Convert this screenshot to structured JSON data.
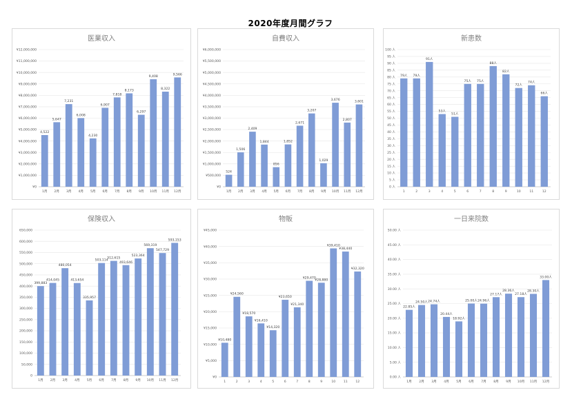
{
  "page": {
    "title": "2020年度月間グラフ"
  },
  "colors": {
    "bar": "#7f9cd6"
  },
  "chart_data": [
    {
      "type": "bar",
      "title": "医業収入",
      "categories": [
        "1月",
        "2月",
        "3月",
        "4月",
        "5月",
        "6月",
        "7月",
        "8月",
        "9月",
        "10月",
        "11月",
        "12月"
      ],
      "values": [
        4522000,
        5647000,
        7231000,
        6008000,
        4230000,
        6907000,
        7818000,
        8173000,
        6297000,
        9408000,
        8322000,
        9566000
      ],
      "data_labels": [
        "4,522",
        "5,647",
        "7,231",
        "6,008",
        "4,230",
        "6,907",
        "7,818",
        "8,173",
        "6,297",
        "9,408",
        "8,322",
        "9,566"
      ],
      "ylim": [
        0,
        12000000
      ],
      "yticks": [
        0,
        1000000,
        2000000,
        3000000,
        4000000,
        5000000,
        6000000,
        7000000,
        8000000,
        9000000,
        10000000,
        11000000,
        12000000
      ],
      "ytick_labels": [
        "¥0",
        "¥1,000,000",
        "¥2,000,000",
        "¥3,000,000",
        "¥4,000,000",
        "¥5,000,000",
        "¥6,000,000",
        "¥7,000,000",
        "¥8,000,000",
        "¥9,000,000",
        "¥10,000,000",
        "¥11,000,000",
        "¥12,000,000"
      ],
      "grid": true
    },
    {
      "type": "bar",
      "title": "自費収入",
      "categories": [
        "1月",
        "2月",
        "3月",
        "4月",
        "5月",
        "6月",
        "7月",
        "8月",
        "9月",
        "10月",
        "11月",
        "12月"
      ],
      "values": [
        524000,
        1506000,
        2409000,
        1844000,
        856000,
        1852000,
        2671000,
        3207000,
        1029000,
        3676000,
        2807000,
        3601000
      ],
      "data_labels": [
        "524",
        "1,506",
        "2,409",
        "1,844",
        "856",
        "1,852",
        "2,671",
        "3,207",
        "1,029",
        "3,676",
        "2,807",
        "3,601"
      ],
      "ylim": [
        0,
        6000000
      ],
      "yticks": [
        0,
        500000,
        1000000,
        1500000,
        2000000,
        2500000,
        3000000,
        3500000,
        4000000,
        4500000,
        5000000,
        5500000,
        6000000
      ],
      "ytick_labels": [
        "¥0",
        "¥500,000",
        "¥1,000,000",
        "¥1,500,000",
        "¥2,000,000",
        "¥2,500,000",
        "¥3,000,000",
        "¥3,500,000",
        "¥4,000,000",
        "¥4,500,000",
        "¥5,000,000",
        "¥5,500,000",
        "¥6,000,000"
      ],
      "grid": true
    },
    {
      "type": "bar",
      "title": "新患数",
      "categories": [
        "1",
        "2",
        "3",
        "4",
        "5",
        "6",
        "7",
        "8",
        "9",
        "10",
        "11",
        "12"
      ],
      "values": [
        79,
        79,
        91,
        53,
        51,
        75,
        75,
        88,
        82,
        72,
        74,
        66
      ],
      "data_labels": [
        "79人",
        "79人",
        "91人",
        "53人",
        "51人",
        "75人",
        "75人",
        "88人",
        "82人",
        "72人",
        "74人",
        "66人"
      ],
      "ylim": [
        0,
        100
      ],
      "yticks": [
        0,
        5,
        10,
        15,
        20,
        25,
        30,
        35,
        40,
        45,
        50,
        55,
        60,
        65,
        70,
        75,
        80,
        85,
        90,
        95,
        100
      ],
      "ytick_labels": [
        "0 人",
        "5 人",
        "10 人",
        "15 人",
        "20 人",
        "25 人",
        "30 人",
        "35 人",
        "40 人",
        "45 人",
        "50 人",
        "55 人",
        "60 人",
        "65 人",
        "70 人",
        "75 人",
        "80 人",
        "85 人",
        "90 人",
        "95 人",
        "100 人"
      ],
      "grid": true
    },
    {
      "type": "bar",
      "title": "保険収入",
      "categories": [
        "1月",
        "2月",
        "3月",
        "4月",
        "5月",
        "6月",
        "7月",
        "8月",
        "9月",
        "10月",
        "11月",
        "12月"
      ],
      "values": [
        399883,
        414045,
        480054,
        413654,
        335957,
        503114,
        512615,
        493646,
        523364,
        569319,
        547729,
        593153
      ],
      "data_labels": [
        "399,883",
        "414,045",
        "480,054",
        "413,654",
        "335,957",
        "503,114",
        "512,615",
        "493,646",
        "523,364",
        "569,319",
        "547,729",
        "593,153"
      ],
      "ylim": [
        0,
        650000
      ],
      "yticks": [
        0,
        50000,
        100000,
        150000,
        200000,
        250000,
        300000,
        350000,
        400000,
        450000,
        500000,
        550000,
        600000,
        650000
      ],
      "ytick_labels": [
        "0",
        "50,000",
        "100,000",
        "150,000",
        "200,000",
        "250,000",
        "300,000",
        "350,000",
        "400,000",
        "450,000",
        "500,000",
        "550,000",
        "600,000",
        "650,000"
      ],
      "grid": true
    },
    {
      "type": "bar",
      "title": "物販",
      "categories": [
        "1",
        "2",
        "3",
        "4",
        "5",
        "6",
        "7",
        "8",
        "9",
        "10",
        "11",
        "12"
      ],
      "values": [
        10480,
        24560,
        18570,
        16410,
        14320,
        23650,
        21340,
        29470,
        28880,
        39410,
        38440,
        32320
      ],
      "data_labels": [
        "¥10,480",
        "¥24,560",
        "¥18,570",
        "¥16,410",
        "¥14,320",
        "¥23,650",
        "¥21,340",
        "¥29,470",
        "¥28,880",
        "¥39,410",
        "¥38,440",
        "¥32,320"
      ],
      "ylim": [
        0,
        45000
      ],
      "yticks": [
        0,
        5000,
        10000,
        15000,
        20000,
        25000,
        30000,
        35000,
        40000,
        45000
      ],
      "ytick_labels": [
        "¥0",
        "¥5,000",
        "¥10,000",
        "¥15,000",
        "¥20,000",
        "¥25,000",
        "¥30,000",
        "¥35,000",
        "¥40,000",
        "¥45,000"
      ],
      "grid": true
    },
    {
      "type": "bar",
      "title": "一日来院数",
      "categories": [
        "1月",
        "2月",
        "3月",
        "4月",
        "5月",
        "6月",
        "7月",
        "8月",
        "9月",
        "10月",
        "11月",
        "12月"
      ],
      "values": [
        22.85,
        24.5,
        24.74,
        20.44,
        18.92,
        25.0,
        24.96,
        27.17,
        28.36,
        27.18,
        28.3,
        33.0
      ],
      "data_labels": [
        "22.85人",
        "24.50人",
        "24.74人",
        "20.44人",
        "18.92人",
        "25.00人",
        "24.96人",
        "27.17人",
        "28.36人",
        "27.18人",
        "28.30人",
        "33.00人"
      ],
      "ylim": [
        0,
        50
      ],
      "yticks": [
        0,
        5,
        10,
        15,
        20,
        25,
        30,
        35,
        40,
        45,
        50
      ],
      "ytick_labels": [
        "0.00 人",
        "5.00 人",
        "10.00 人",
        "15.00 人",
        "20.00 人",
        "25.00 人",
        "30.00 人",
        "35.00 人",
        "40.00 人",
        "45.00 人",
        "50.00 人"
      ],
      "grid": true
    }
  ]
}
